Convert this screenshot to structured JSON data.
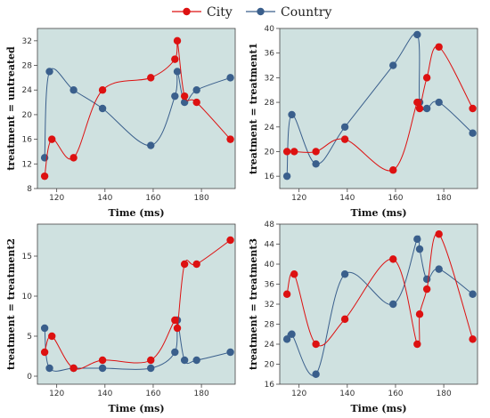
{
  "legend": {
    "items": [
      {
        "name": "City",
        "color": "#dd1111"
      },
      {
        "name": "Country",
        "color": "#3a5f8c"
      }
    ]
  },
  "colors": {
    "plot_bg": "#cfe1e0",
    "city": "#dd1111",
    "country": "#3a5f8c",
    "grid": "#ffffff"
  },
  "chart_data": [
    {
      "type": "line",
      "xlabel": "Time (ms)",
      "ylabel": "treatment = untreated",
      "xlim": [
        112,
        194
      ],
      "ylim": [
        8,
        34
      ],
      "xticks": [
        120,
        140,
        160,
        180
      ],
      "yticks": [
        8,
        12,
        16,
        20,
        24,
        28,
        32
      ],
      "grid": false,
      "legend": "top-center",
      "series": [
        {
          "name": "City",
          "x": [
            115,
            118,
            127,
            139,
            159,
            169,
            170,
            173,
            178,
            192
          ],
          "y": [
            10,
            16,
            13,
            24,
            26,
            29,
            32,
            23,
            22,
            16
          ]
        },
        {
          "name": "Country",
          "x": [
            115,
            117,
            127,
            139,
            159,
            169,
            170,
            173,
            178,
            192
          ],
          "y": [
            13,
            27,
            24,
            21,
            15,
            23,
            27,
            22,
            24,
            26
          ]
        }
      ]
    },
    {
      "type": "line",
      "xlabel": "Time (ms)",
      "ylabel": "treatment = treatment1",
      "xlim": [
        112,
        194
      ],
      "ylim": [
        14,
        40
      ],
      "xticks": [
        120,
        140,
        160,
        180
      ],
      "yticks": [
        16,
        20,
        24,
        28,
        32,
        36,
        40
      ],
      "grid": false,
      "series": [
        {
          "name": "City",
          "x": [
            115,
            118,
            127,
            139,
            159,
            169,
            170,
            173,
            178,
            192
          ],
          "y": [
            20,
            20,
            20,
            22,
            17,
            28,
            27,
            32,
            37,
            27
          ]
        },
        {
          "name": "Country",
          "x": [
            115,
            117,
            127,
            139,
            159,
            169,
            170,
            173,
            178,
            192
          ],
          "y": [
            16,
            26,
            18,
            24,
            34,
            39,
            28,
            27,
            28,
            23
          ]
        }
      ]
    },
    {
      "type": "line",
      "xlabel": "Time (ms)",
      "ylabel": "treatment = treatment2",
      "xlim": [
        112,
        194
      ],
      "ylim": [
        -1,
        19
      ],
      "xticks": [
        120,
        140,
        160,
        180
      ],
      "yticks": [
        0,
        5,
        10,
        15
      ],
      "grid": false,
      "series": [
        {
          "name": "City",
          "x": [
            115,
            118,
            127,
            139,
            159,
            169,
            170,
            173,
            178,
            192
          ],
          "y": [
            3,
            5,
            1,
            2,
            2,
            7,
            6,
            14,
            14,
            17
          ]
        },
        {
          "name": "Country",
          "x": [
            115,
            117,
            127,
            139,
            159,
            169,
            170,
            173,
            178,
            192
          ],
          "y": [
            6,
            1,
            1,
            1,
            1,
            3,
            7,
            2,
            2,
            3
          ]
        }
      ]
    },
    {
      "type": "line",
      "xlabel": "Time (ms)",
      "ylabel": "treatment = treatment3",
      "xlim": [
        112,
        194
      ],
      "ylim": [
        16,
        48
      ],
      "xticks": [
        120,
        140,
        160,
        180
      ],
      "yticks": [
        16,
        20,
        24,
        28,
        32,
        36,
        40,
        44,
        48
      ],
      "grid": false,
      "series": [
        {
          "name": "City",
          "x": [
            115,
            118,
            127,
            139,
            159,
            169,
            170,
            173,
            178,
            192
          ],
          "y": [
            34,
            38,
            24,
            29,
            41,
            24,
            30,
            35,
            46,
            25
          ]
        },
        {
          "name": "Country",
          "x": [
            115,
            117,
            127,
            139,
            159,
            169,
            170,
            173,
            178,
            192
          ],
          "y": [
            25,
            26,
            18,
            38,
            32,
            45,
            43,
            37,
            39,
            34
          ]
        }
      ]
    }
  ]
}
